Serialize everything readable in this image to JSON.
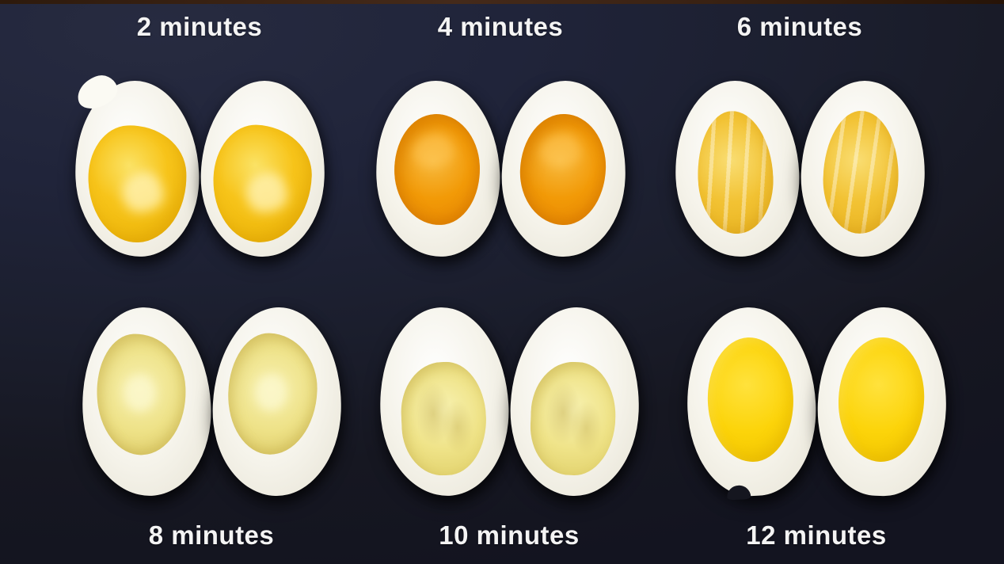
{
  "image_kind": "egg-boiling-time-comparison-photo",
  "panels": [
    {
      "label": "2 minutes"
    },
    {
      "label": "4 minutes"
    },
    {
      "label": "6 minutes"
    },
    {
      "label": "8 minutes"
    },
    {
      "label": "10 minutes"
    },
    {
      "label": "12 minutes"
    }
  ],
  "colors": {
    "label_text": "#f4f4f4",
    "background": "#1b1e2d",
    "background_dark": "#131420",
    "top_strip_brown": "#3a2213",
    "egg_white": "#f5f3ea",
    "egg_white_shadow": "#d9d6c9",
    "yolk_2min": "#f7c41a",
    "yolk_2min_light": "#fbe264",
    "yolk_4min": "#f29a07",
    "yolk_4min_light": "#f7b93e",
    "yolk_6min": "#f2c233",
    "yolk_6min_light": "#f9dd72",
    "yolk_8min": "#eee288",
    "yolk_8min_light": "#f7f0ae",
    "yolk_10min": "#efe388",
    "yolk_10min_light": "#f8f2b2",
    "yolk_12min": "#fcd40a",
    "yolk_12min_light": "#ffe23c"
  }
}
